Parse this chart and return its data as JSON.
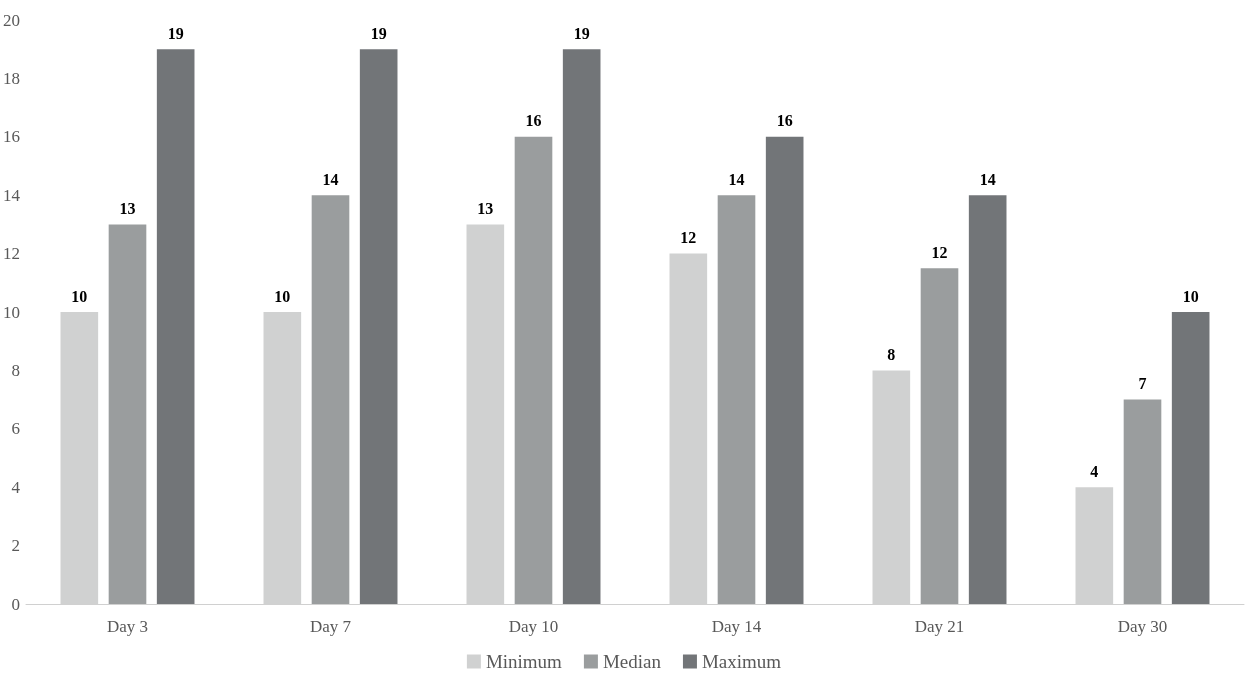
{
  "chart_data": {
    "type": "bar",
    "categories": [
      "Day 3",
      "Day 7",
      "Day 10",
      "Day 14",
      "Day 21",
      "Day 30"
    ],
    "series": [
      {
        "name": "Minimum",
        "color": "#d0d1d1",
        "values": [
          10,
          10,
          13,
          12,
          8,
          4
        ],
        "value_labels": [
          "10",
          "10",
          "13",
          "12",
          "8",
          "4"
        ]
      },
      {
        "name": "Median",
        "color": "#9a9d9e",
        "values": [
          13,
          14,
          16,
          14,
          11.5,
          7
        ],
        "value_labels": [
          "13",
          "14",
          "16",
          "14",
          "12",
          "7"
        ]
      },
      {
        "name": "Maximum",
        "color": "#727578",
        "values": [
          19,
          19,
          19,
          16,
          14,
          10
        ],
        "value_labels": [
          "19",
          "19",
          "19",
          "16",
          "14",
          "10"
        ]
      }
    ],
    "ylim": [
      0,
      20
    ],
    "yticks": [
      0,
      2,
      4,
      6,
      8,
      10,
      12,
      14,
      16,
      18,
      20
    ],
    "grid": false,
    "legend": "bottom"
  }
}
